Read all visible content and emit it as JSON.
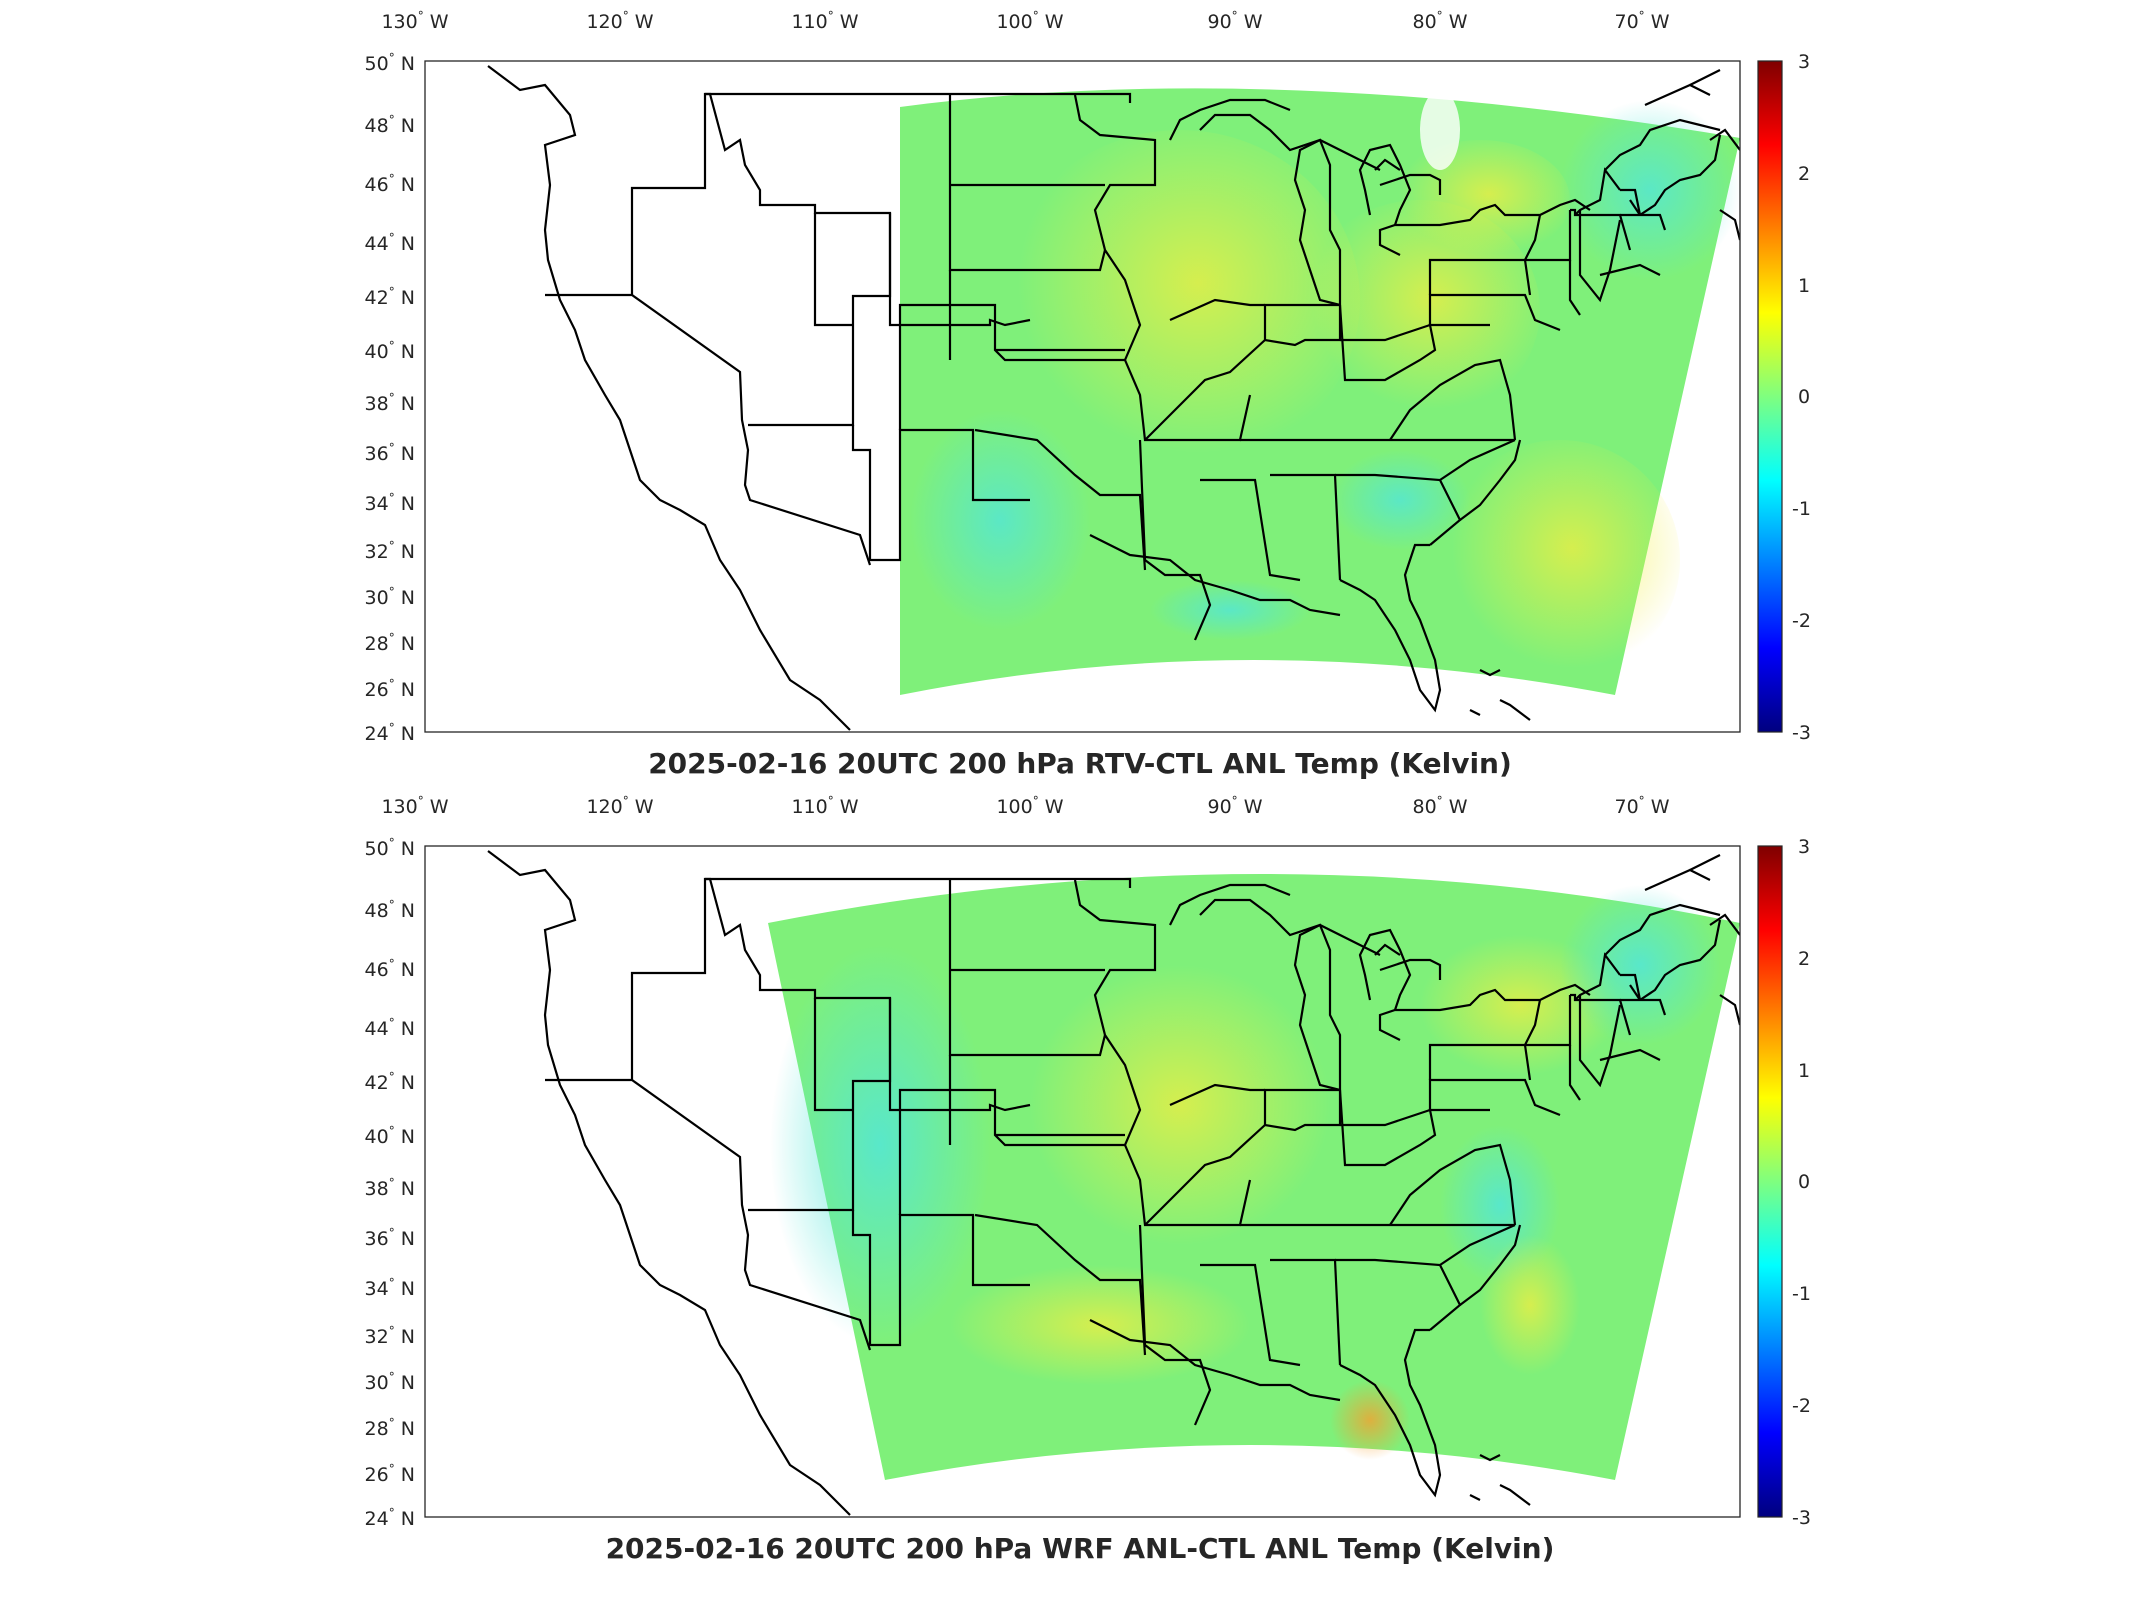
{
  "panels": [
    {
      "title": "2025-02-16 20UTC 200 hPa RTV-CTL ANL Temp (Kelvin)",
      "lon_labels": [
        "130",
        "120",
        "110",
        "100",
        "90",
        "80",
        "70"
      ],
      "lon_suffix": "W",
      "lat_labels": [
        "50",
        "48",
        "46",
        "44",
        "42",
        "40",
        "38",
        "36",
        "34",
        "32",
        "30",
        "28",
        "26",
        "24"
      ],
      "lat_suffix": "N",
      "colorbar_ticks": [
        "3",
        "2",
        "1",
        "0",
        "-1",
        "-2",
        "-3"
      ],
      "field_domain": "eastern (starts ~107W)"
    },
    {
      "title": "2025-02-16 20UTC 200 hPa WRF ANL-CTL ANL Temp (Kelvin)",
      "lon_labels": [
        "130",
        "120",
        "110",
        "100",
        "90",
        "80",
        "70"
      ],
      "lon_suffix": "W",
      "lat_labels": [
        "50",
        "48",
        "46",
        "44",
        "42",
        "40",
        "38",
        "36",
        "34",
        "32",
        "30",
        "28",
        "26",
        "24"
      ],
      "lat_suffix": "N",
      "colorbar_ticks": [
        "3",
        "2",
        "1",
        "0",
        "-1",
        "-2",
        "-3"
      ],
      "field_domain": "wider (starts ~113W)"
    }
  ],
  "colormap": {
    "name": "jet",
    "stops": [
      "#00007f",
      "#0000ff",
      "#007fff",
      "#00ffff",
      "#7fff7f",
      "#ffff00",
      "#ff7f00",
      "#ff0000",
      "#7f0000"
    ],
    "field_base_color": "#7ff07a",
    "field_warm_color": "#f2ee40",
    "field_cool_color": "#52e6d8"
  }
}
